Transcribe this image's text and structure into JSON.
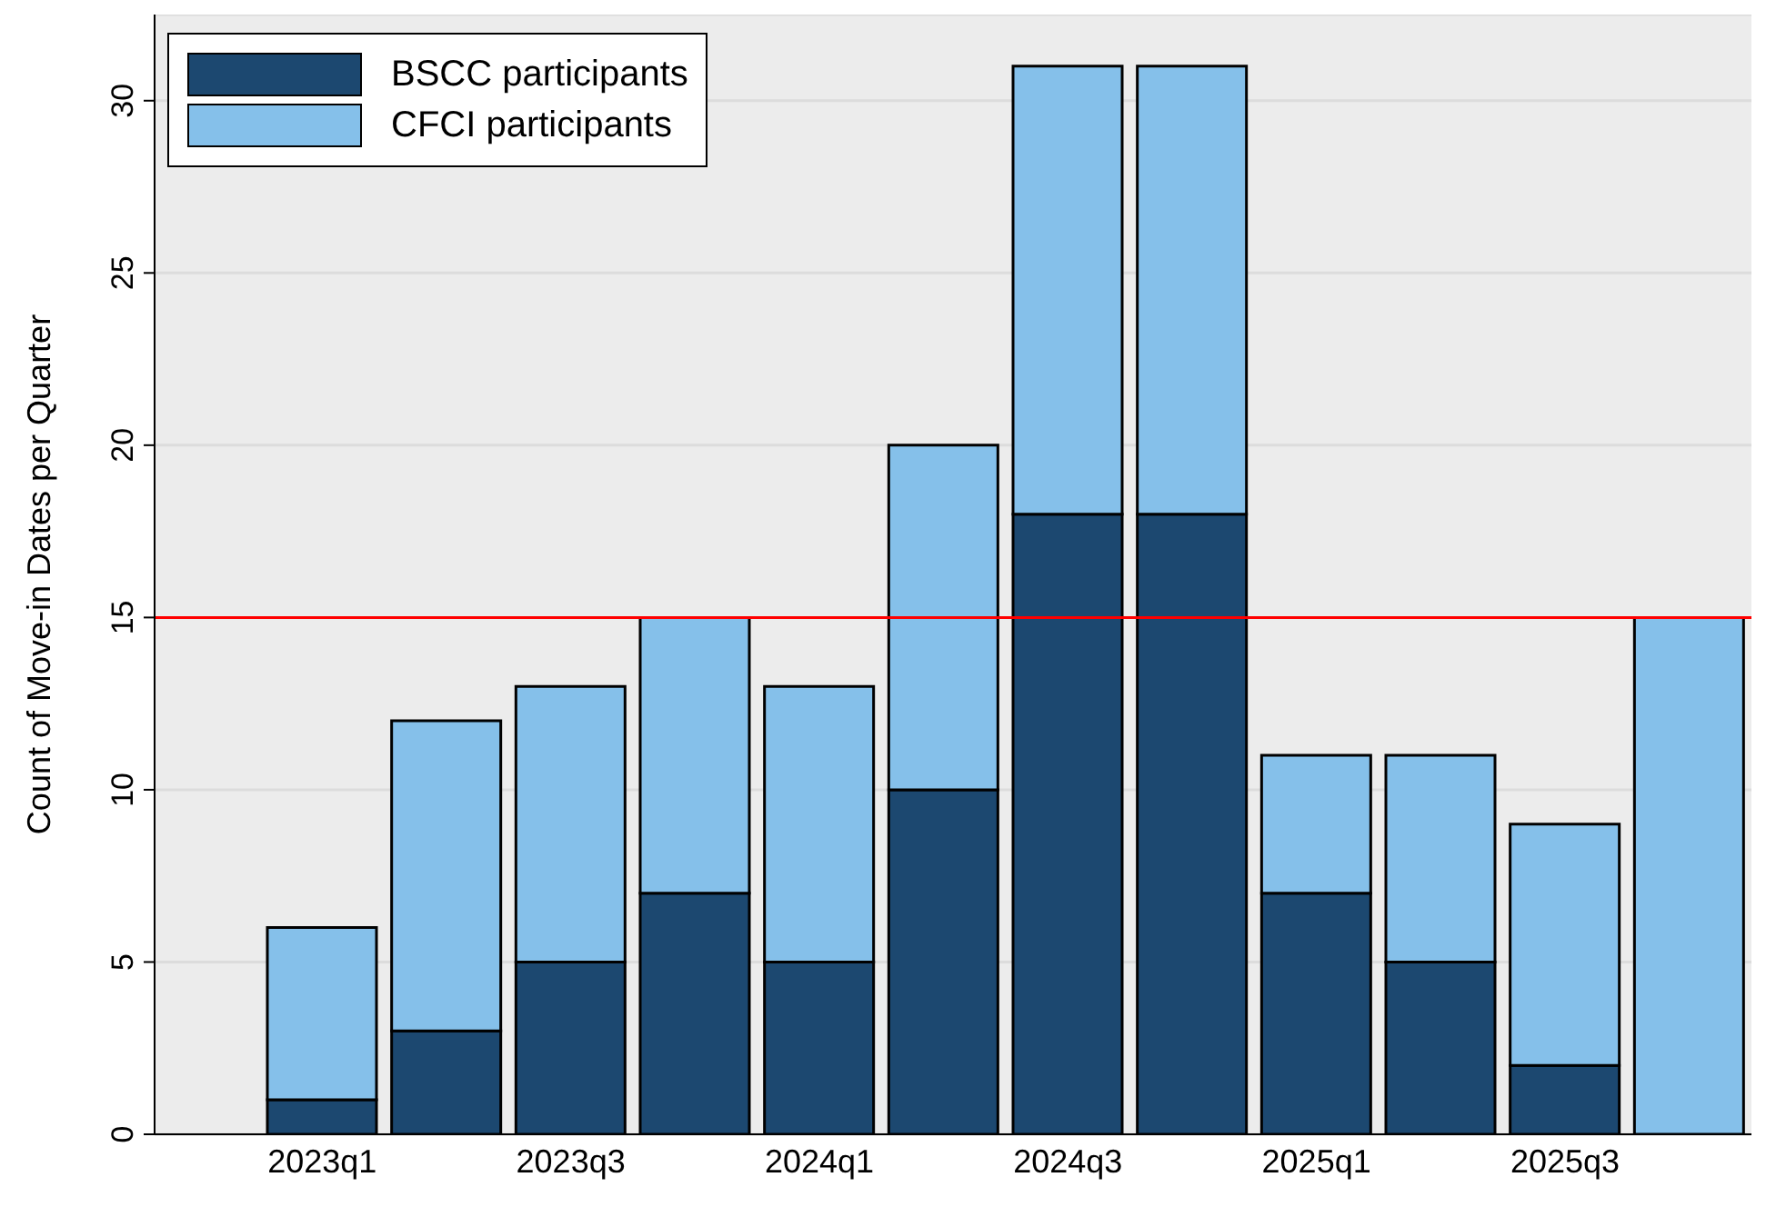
{
  "chart_data": {
    "type": "bar",
    "stacked": true,
    "ylabel": "Count of Move-in Dates per Quarter",
    "categories": [
      "2023q1",
      null,
      "2023q3",
      null,
      "2024q1",
      null,
      "2024q3",
      null,
      "2025q1",
      null,
      "2025q3",
      null
    ],
    "series": [
      {
        "name": "BSCC participants",
        "color": "#1c4870",
        "values": [
          1,
          3,
          5,
          7,
          5,
          10,
          18,
          18,
          7,
          5,
          2,
          0
        ]
      },
      {
        "name": "CFCI participants",
        "color": "#85c0ea",
        "values": [
          5,
          9,
          8,
          8,
          8,
          10,
          13,
          13,
          4,
          6,
          7,
          15
        ]
      }
    ],
    "ylim": [
      0,
      32.5
    ],
    "yticks": [
      0,
      5,
      10,
      15,
      20,
      25,
      30
    ],
    "grid": "y",
    "legend": "top left",
    "ref_lines": [
      {
        "axis": "y",
        "value": 15,
        "color": "#ff0000"
      }
    ]
  }
}
